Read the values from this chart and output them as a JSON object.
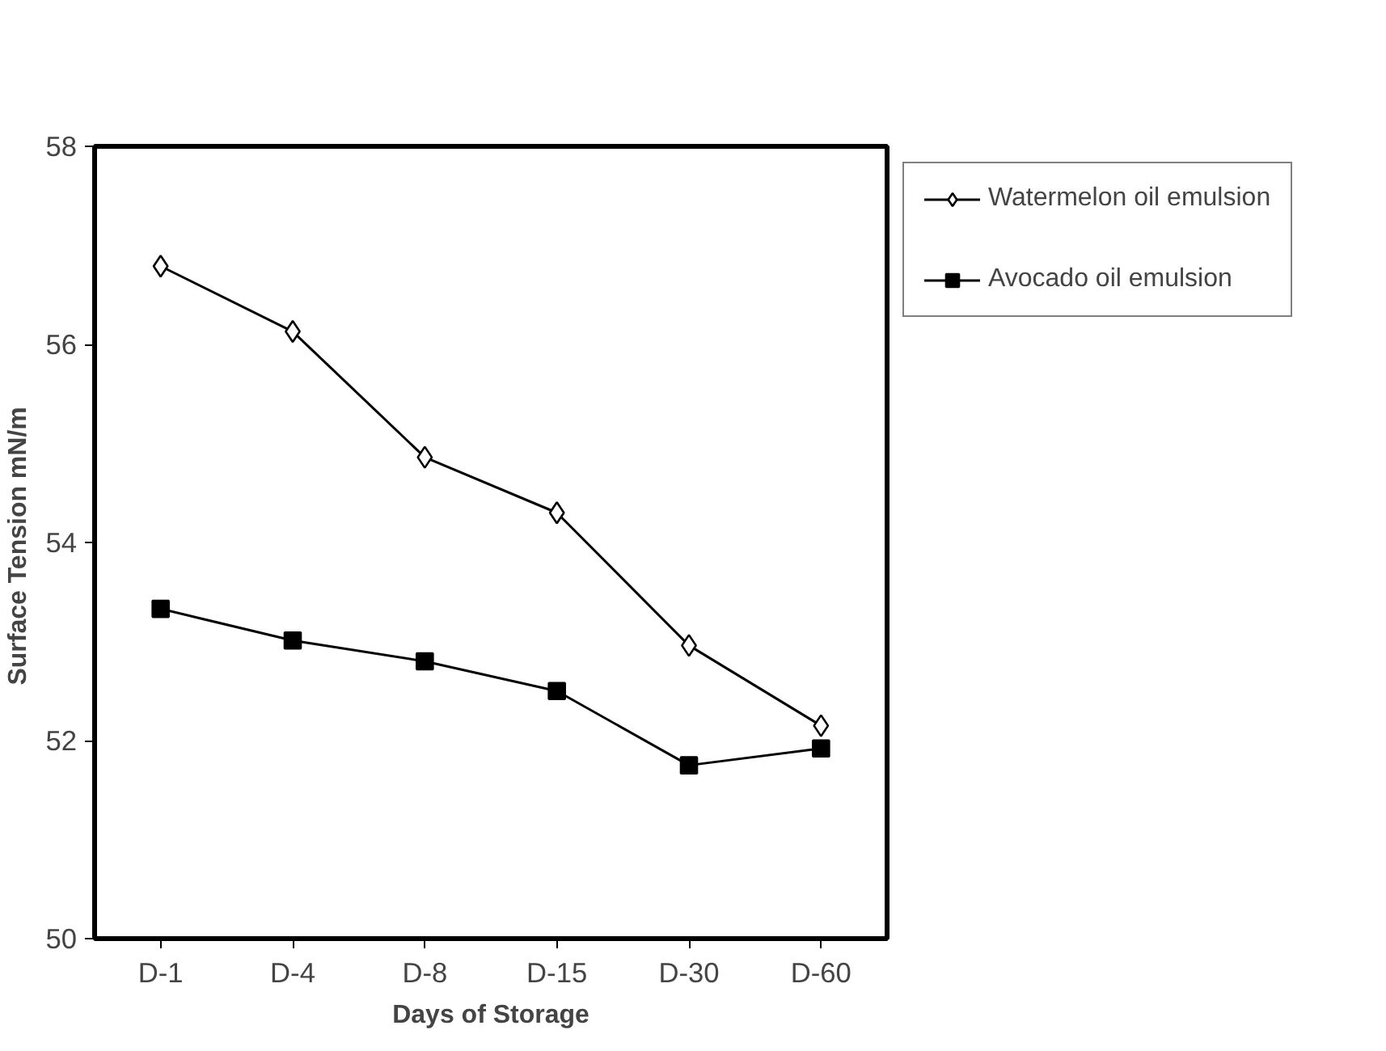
{
  "chart_data": {
    "type": "line",
    "xlabel": "Days of Storage",
    "ylabel": "Surface Tension  mN/m",
    "categories": [
      "D-1",
      "D-4",
      "D-8",
      "D-15",
      "D-30",
      "D-60"
    ],
    "ylim": [
      50,
      58
    ],
    "yticks": [
      50,
      52,
      54,
      56,
      58
    ],
    "grid": false,
    "legend": "right",
    "series": [
      {
        "name": "Watermelon oil emulsion",
        "color": "#000000",
        "marker": "diamond",
        "values": [
          56.79,
          56.13,
          54.86,
          54.3,
          52.96,
          52.15
        ]
      },
      {
        "name": "Avocado oil emulsion",
        "color": "#000000",
        "marker": "square",
        "values": [
          53.33,
          53.01,
          52.8,
          52.5,
          51.75,
          51.92
        ]
      }
    ]
  }
}
